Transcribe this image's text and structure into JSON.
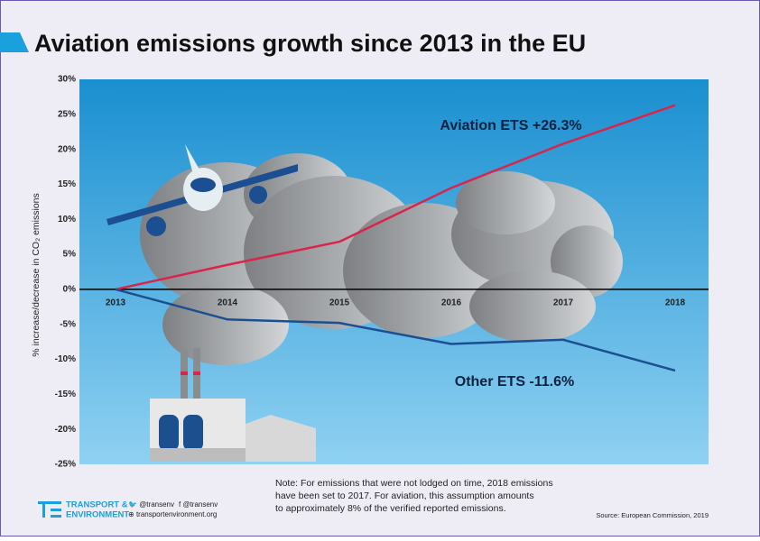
{
  "chart_data": {
    "type": "line",
    "title": "Aviation emissions growth since 2013 in the EU",
    "y_label": "% increase/decrease in CO₂ emissions",
    "categories": [
      "2013",
      "2014",
      "2015",
      "2016",
      "2017",
      "2018"
    ],
    "series": [
      {
        "name": "Aviation ETS +26.3%",
        "color": "#d9244c",
        "values": [
          0,
          3.5,
          6.8,
          14.5,
          20.8,
          26.3
        ]
      },
      {
        "name": "Other ETS -11.6%",
        "color": "#1b4f91",
        "values": [
          0,
          -4.3,
          -4.8,
          -7.8,
          -7.2,
          -11.6
        ]
      }
    ],
    "ylim": [
      -25,
      30
    ],
    "yticks": [
      {
        "value": 30,
        "label": "30%"
      },
      {
        "value": 25,
        "label": "25%"
      },
      {
        "value": 20,
        "label": "20%"
      },
      {
        "value": 15,
        "label": "15%"
      },
      {
        "value": 10,
        "label": "10%"
      },
      {
        "value": 5,
        "label": "5%"
      },
      {
        "value": 0,
        "label": "0%"
      },
      {
        "value": -5,
        "label": "-5%"
      },
      {
        "value": -10,
        "label": "-10%"
      },
      {
        "value": -15,
        "label": "-15%"
      },
      {
        "value": -20,
        "label": "-20%"
      },
      {
        "value": -25,
        "label": "-25%"
      }
    ],
    "grid": false
  },
  "footer": {
    "note": [
      "Note:  For emissions that were not lodged on time, 2018 emissions",
      " have been set to 2017.  For aviation, this assumption amounts",
      "to approximately 8% of the verified reported emissions."
    ],
    "source": "Source: European Commission, 2019",
    "logo": [
      "TRANSPORT &",
      "ENVIRONMENT"
    ],
    "twitter": "@transenv",
    "facebook": "@transenv",
    "website": "transportenvironment.org"
  }
}
